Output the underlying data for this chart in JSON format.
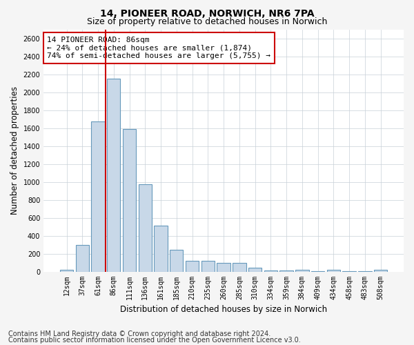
{
  "title": "14, PIONEER ROAD, NORWICH, NR6 7PA",
  "subtitle": "Size of property relative to detached houses in Norwich",
  "xlabel": "Distribution of detached houses by size in Norwich",
  "ylabel": "Number of detached properties",
  "categories": [
    "12sqm",
    "37sqm",
    "61sqm",
    "86sqm",
    "111sqm",
    "136sqm",
    "161sqm",
    "185sqm",
    "210sqm",
    "235sqm",
    "260sqm",
    "285sqm",
    "310sqm",
    "334sqm",
    "359sqm",
    "384sqm",
    "409sqm",
    "434sqm",
    "458sqm",
    "483sqm",
    "508sqm"
  ],
  "values": [
    20,
    300,
    1670,
    2150,
    1590,
    970,
    510,
    245,
    120,
    120,
    95,
    95,
    40,
    15,
    10,
    20,
    5,
    20,
    5,
    5,
    20
  ],
  "bar_color": "#c8d8e8",
  "bar_edge_color": "#6699bb",
  "marker_index": 3,
  "marker_color": "#cc0000",
  "annotation_text": "14 PIONEER ROAD: 86sqm\n← 24% of detached houses are smaller (1,874)\n74% of semi-detached houses are larger (5,755) →",
  "annotation_box_color": "#ffffff",
  "annotation_box_edge": "#cc0000",
  "ylim": [
    0,
    2700
  ],
  "yticks": [
    0,
    200,
    400,
    600,
    800,
    1000,
    1200,
    1400,
    1600,
    1800,
    2000,
    2200,
    2400,
    2600
  ],
  "footer1": "Contains HM Land Registry data © Crown copyright and database right 2024.",
  "footer2": "Contains public sector information licensed under the Open Government Licence v3.0.",
  "bg_color": "#f5f5f5",
  "plot_bg_color": "#ffffff",
  "title_fontsize": 10,
  "subtitle_fontsize": 9,
  "axis_label_fontsize": 8.5,
  "tick_fontsize": 7,
  "annotation_fontsize": 8,
  "footer_fontsize": 7
}
